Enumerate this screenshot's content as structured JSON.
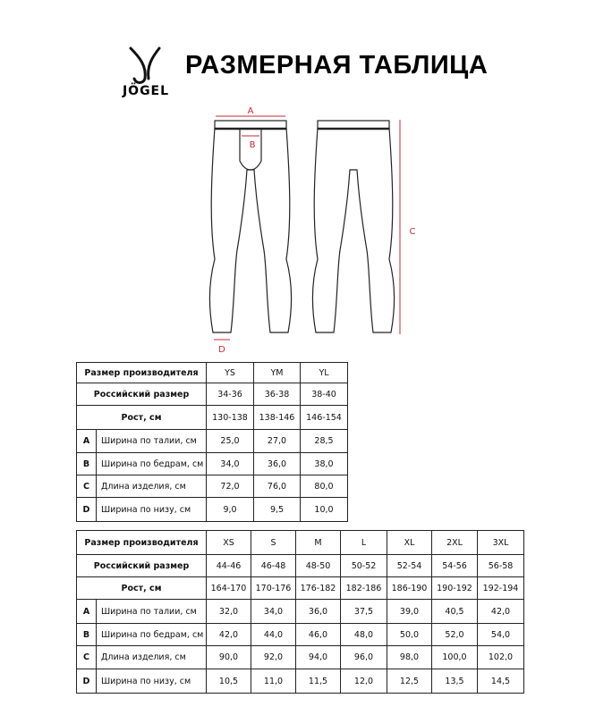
{
  "header": {
    "logo_text": "JÖGEL",
    "title": "РАЗМЕРНАЯ ТАБЛИЦА"
  },
  "drawing": {
    "labels": [
      "A",
      "B",
      "C",
      "D"
    ]
  },
  "tables": [
    {
      "header_rows": [
        [
          "Размер производителя",
          "YS",
          "YM",
          "YL"
        ],
        [
          "Российский размер",
          "34-36",
          "36-38",
          "38-40"
        ],
        [
          "Рост, см",
          "130-138",
          "138-146",
          "146-154"
        ]
      ],
      "rows": [
        [
          "A",
          "Ширина по талии, см",
          "25,0",
          "27,0",
          "28,5"
        ],
        [
          "B",
          "Ширина по бедрам, см",
          "34,0",
          "36,0",
          "38,0"
        ],
        [
          "C",
          "Длина изделия, см",
          "72,0",
          "76,0",
          "80,0"
        ],
        [
          "D",
          "Ширина по низу, см",
          "9,0",
          "9,5",
          "10,0"
        ]
      ]
    },
    {
      "header_rows": [
        [
          "Размер производителя",
          "XS",
          "S",
          "M",
          "L",
          "XL",
          "2XL",
          "3XL"
        ],
        [
          "Российский размер",
          "44-46",
          "46-48",
          "48-50",
          "50-52",
          "52-54",
          "54-56",
          "56-58"
        ],
        [
          "Рост, см",
          "164-170",
          "170-176",
          "176-182",
          "182-186",
          "186-190",
          "190-192",
          "192-194"
        ]
      ],
      "rows": [
        [
          "A",
          "Ширина по талии, см",
          "32,0",
          "34,0",
          "36,0",
          "37,5",
          "39,0",
          "40,5",
          "42,0"
        ],
        [
          "B",
          "Ширина по бедрам, см",
          "42,0",
          "44,0",
          "46,0",
          "48,0",
          "50,0",
          "52,0",
          "54,0"
        ],
        [
          "C",
          "Длина изделия, см",
          "90,0",
          "92,0",
          "94,0",
          "96,0",
          "98,0",
          "100,0",
          "102,0"
        ],
        [
          "D",
          "Ширина по низу, см",
          "10,5",
          "11,0",
          "11,5",
          "12,0",
          "12,5",
          "13,5",
          "14,5"
        ]
      ]
    }
  ]
}
